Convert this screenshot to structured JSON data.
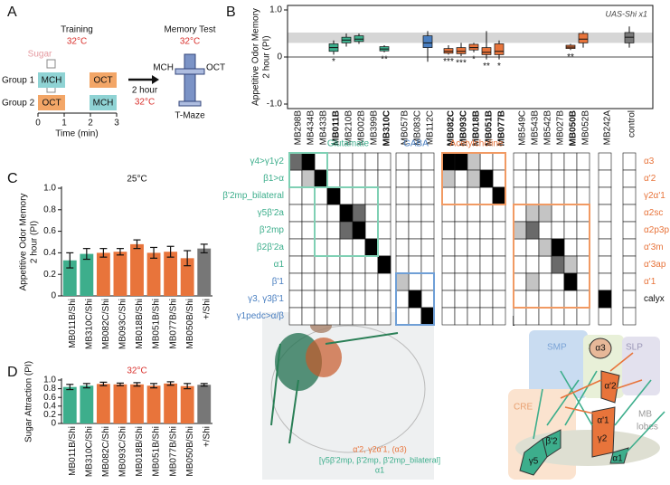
{
  "panels": [
    "A",
    "B",
    "C",
    "D",
    "E",
    "F"
  ],
  "panel_a": {
    "training": "Training",
    "training_temp": "32°C",
    "sugar": "Sugar",
    "group1": "Group 1",
    "group2": "Group 2",
    "g1_first": "MCH",
    "g1_second": "OCT",
    "g2_first": "OCT",
    "g2_second": "MCH",
    "time_ticks": [
      "0",
      "1",
      "2",
      "3"
    ],
    "time_label": "Time (min)",
    "delay": "2 hour",
    "delay_temp": "32°C",
    "test": "Memory Test",
    "test_temp": "32°C",
    "maze_left": "MCH",
    "maze_right": "OCT",
    "maze": "T-Maze"
  },
  "chart_data": [
    {
      "type": "box",
      "title": "UAS-Shi x1",
      "ylabel": [
        "Appetitive Odor Memory",
        "2 hour (PI)"
      ],
      "categories": [
        "MB298B",
        "MB434B",
        "MB433B",
        "MB011B",
        "MB210B",
        "MB002B",
        "MB399B",
        "MB310C",
        "MB057B",
        "MB083C",
        "MB112C",
        "MB082C",
        "MB093C",
        "MB018B",
        "MB051B",
        "MB077B",
        "MB549C",
        "MB543B",
        "MB542B",
        "MB027B",
        "MB050B",
        "MB052B",
        "MB242A",
        "control"
      ],
      "bold": [
        3,
        7,
        11,
        12,
        13,
        14,
        15,
        20
      ],
      "boxes": [
        null,
        null,
        null,
        {
          "low": 0.05,
          "q1": 0.12,
          "median": 0.2,
          "q3": 0.28,
          "high": 0.35,
          "color": "#3dae8c"
        },
        {
          "low": 0.22,
          "q1": 0.3,
          "median": 0.36,
          "q3": 0.42,
          "high": 0.5,
          "color": "#3dae8c"
        },
        {
          "low": 0.28,
          "q1": 0.33,
          "median": 0.38,
          "q3": 0.45,
          "high": 0.5,
          "color": "#3dae8c"
        },
        null,
        {
          "low": 0.1,
          "q1": 0.13,
          "median": 0.17,
          "q3": 0.22,
          "high": 0.25,
          "color": "#3dae8c"
        },
        null,
        null,
        {
          "low": -0.1,
          "q1": 0.2,
          "median": 0.3,
          "q3": 0.45,
          "high": 0.55,
          "color": "#4a7fc1"
        },
        {
          "low": 0.05,
          "q1": 0.08,
          "median": 0.12,
          "q3": 0.18,
          "high": 0.25,
          "color": "#e8743b"
        },
        {
          "low": 0.02,
          "q1": 0.07,
          "median": 0.12,
          "q3": 0.2,
          "high": 0.3,
          "color": "#e8743b"
        },
        {
          "low": 0.1,
          "q1": 0.15,
          "median": 0.2,
          "q3": 0.27,
          "high": 0.3,
          "color": "#e8743b"
        },
        {
          "low": -0.05,
          "q1": 0.05,
          "median": 0.1,
          "q3": 0.2,
          "high": 0.55,
          "color": "#e8743b"
        },
        {
          "low": -0.05,
          "q1": 0.05,
          "median": 0.12,
          "q3": 0.28,
          "high": 0.35,
          "color": "#e8743b"
        },
        null,
        null,
        null,
        null,
        {
          "low": 0.15,
          "q1": 0.18,
          "median": 0.21,
          "q3": 0.25,
          "high": 0.28,
          "color": "#e8743b"
        },
        {
          "low": 0.2,
          "q1": 0.3,
          "median": 0.38,
          "q3": 0.5,
          "high": 0.55,
          "color": "#e8743b"
        },
        null,
        {
          "low": 0.2,
          "q1": 0.3,
          "median": 0.42,
          "q3": 0.52,
          "high": 0.65,
          "color": "#777777"
        }
      ],
      "annotations": [
        null,
        null,
        null,
        "*",
        null,
        null,
        null,
        "**",
        null,
        null,
        null,
        "***",
        "***",
        "*",
        "**",
        "*",
        null,
        null,
        null,
        null,
        "**",
        null,
        null,
        null
      ],
      "groups": [
        {
          "name": "Glutamate",
          "color": "#3dae8c"
        },
        {
          "name": "GABA",
          "color": "#4a7fc1"
        },
        {
          "name": "Acetylcholine",
          "color": "#e8743b"
        }
      ],
      "ylim": [
        -1,
        1
      ],
      "yticks": [
        {
          "value": -1,
          "label": "-1.0"
        },
        0,
        {
          "value": 1,
          "label": "1.0"
        }
      ]
    },
    {
      "type": "bar",
      "title": "25°C",
      "ylabel": [
        "Appetitive Odor Memory",
        "2 hour (PI)"
      ],
      "categories": [
        "MB011B/Shi",
        "MB310C/Shi",
        "MB082C/Shi",
        "MB093C/Shi",
        "MB018B/Shi",
        "MB051B/Shi",
        "MB077B/Shi",
        "MB050B/Shi",
        "+/Shi"
      ],
      "values": [
        0.33,
        0.39,
        0.4,
        0.41,
        0.48,
        0.4,
        0.41,
        0.35,
        0.44
      ],
      "errors": [
        0.07,
        0.05,
        0.04,
        0.03,
        0.04,
        0.05,
        0.05,
        0.07,
        0.04
      ],
      "colors": [
        "#3dae8c",
        "#3dae8c",
        "#e8743b",
        "#e8743b",
        "#e8743b",
        "#e8743b",
        "#e8743b",
        "#e8743b",
        "#777777"
      ],
      "ylim": [
        0,
        1
      ],
      "yticks": [
        0,
        0.2,
        0.4,
        0.6,
        0.8,
        {
          "value": 1,
          "label": "1.0"
        }
      ]
    },
    {
      "type": "bar",
      "title": "32°C",
      "ylabel": [
        "Sugar Attraction (PI)"
      ],
      "categories": [
        "MB011B/Shi",
        "MB310C/Shi",
        "MB082C/Shi",
        "MB093C/Shi",
        "MB018B/Shi",
        "MB051B/Shi",
        "MB077B/Shi",
        "MB050B/Shi",
        "+/Shi"
      ],
      "values": [
        0.84,
        0.87,
        0.91,
        0.9,
        0.9,
        0.87,
        0.92,
        0.86,
        0.89
      ],
      "errors": [
        0.06,
        0.05,
        0.04,
        0.03,
        0.04,
        0.05,
        0.04,
        0.06,
        0.03
      ],
      "colors": [
        "#3dae8c",
        "#3dae8c",
        "#e8743b",
        "#e8743b",
        "#e8743b",
        "#e8743b",
        "#e8743b",
        "#e8743b",
        "#777777"
      ],
      "ylim": [
        0,
        1
      ],
      "yticks": [
        0,
        0.2,
        0.4,
        0.6,
        0.8,
        {
          "value": 1,
          "label": "1.0"
        }
      ]
    }
  ],
  "matrix": {
    "left_labels": [
      "γ4>γ1γ2",
      "β1>α",
      "β'2mp_bilateral",
      "γ5β'2a",
      "β'2mp",
      "β2β'2a",
      "α1",
      "β'1",
      "γ3, γ3β'1",
      "γ1pedc>α/β"
    ],
    "right_labels": [
      "α3",
      "α'2",
      "γ2α'1",
      "α2sc",
      "α2p3p",
      "α'3m",
      "α'3ap",
      "α'1",
      "calyx",
      null
    ],
    "cells": [
      [
        0,
        0,
        2
      ],
      [
        0,
        1,
        3
      ],
      [
        0,
        11,
        3
      ],
      [
        0,
        12,
        3
      ],
      [
        0,
        13,
        1
      ],
      [
        1,
        1,
        1
      ],
      [
        1,
        2,
        3
      ],
      [
        1,
        11,
        1
      ],
      [
        1,
        13,
        1
      ],
      [
        1,
        14,
        3
      ],
      [
        2,
        3,
        3
      ],
      [
        2,
        15,
        3
      ],
      [
        3,
        4,
        3
      ],
      [
        3,
        5,
        2
      ],
      [
        3,
        17,
        1
      ],
      [
        3,
        18,
        1
      ],
      [
        4,
        4,
        2
      ],
      [
        4,
        5,
        3
      ],
      [
        4,
        16,
        1
      ],
      [
        4,
        17,
        2
      ],
      [
        5,
        6,
        3
      ],
      [
        5,
        18,
        1
      ],
      [
        5,
        19,
        3
      ],
      [
        6,
        7,
        3
      ],
      [
        6,
        19,
        2
      ],
      [
        6,
        20,
        1
      ],
      [
        7,
        8,
        1
      ],
      [
        7,
        17,
        1
      ],
      [
        7,
        20,
        3
      ],
      [
        8,
        9,
        3
      ],
      [
        8,
        22,
        3
      ],
      [
        9,
        10,
        3
      ]
    ]
  },
  "panel_e": {
    "line1": "α'2, γ2α'1, (α3)",
    "line2": "[γ5β'2mp, β'2mp, β'2mp_bilateral]",
    "line3": "α1"
  },
  "panel_f": {
    "smp": "SMP",
    "sip": "SIP",
    "slp": "SLP",
    "cre": "CRE",
    "mb": [
      "MB",
      "lobes"
    ],
    "a3": "α3",
    "a2p": "α'2",
    "a1p": "α'1",
    "g2": "γ2",
    "b2p": "β'2",
    "g5": "γ5",
    "a1": "α1"
  }
}
